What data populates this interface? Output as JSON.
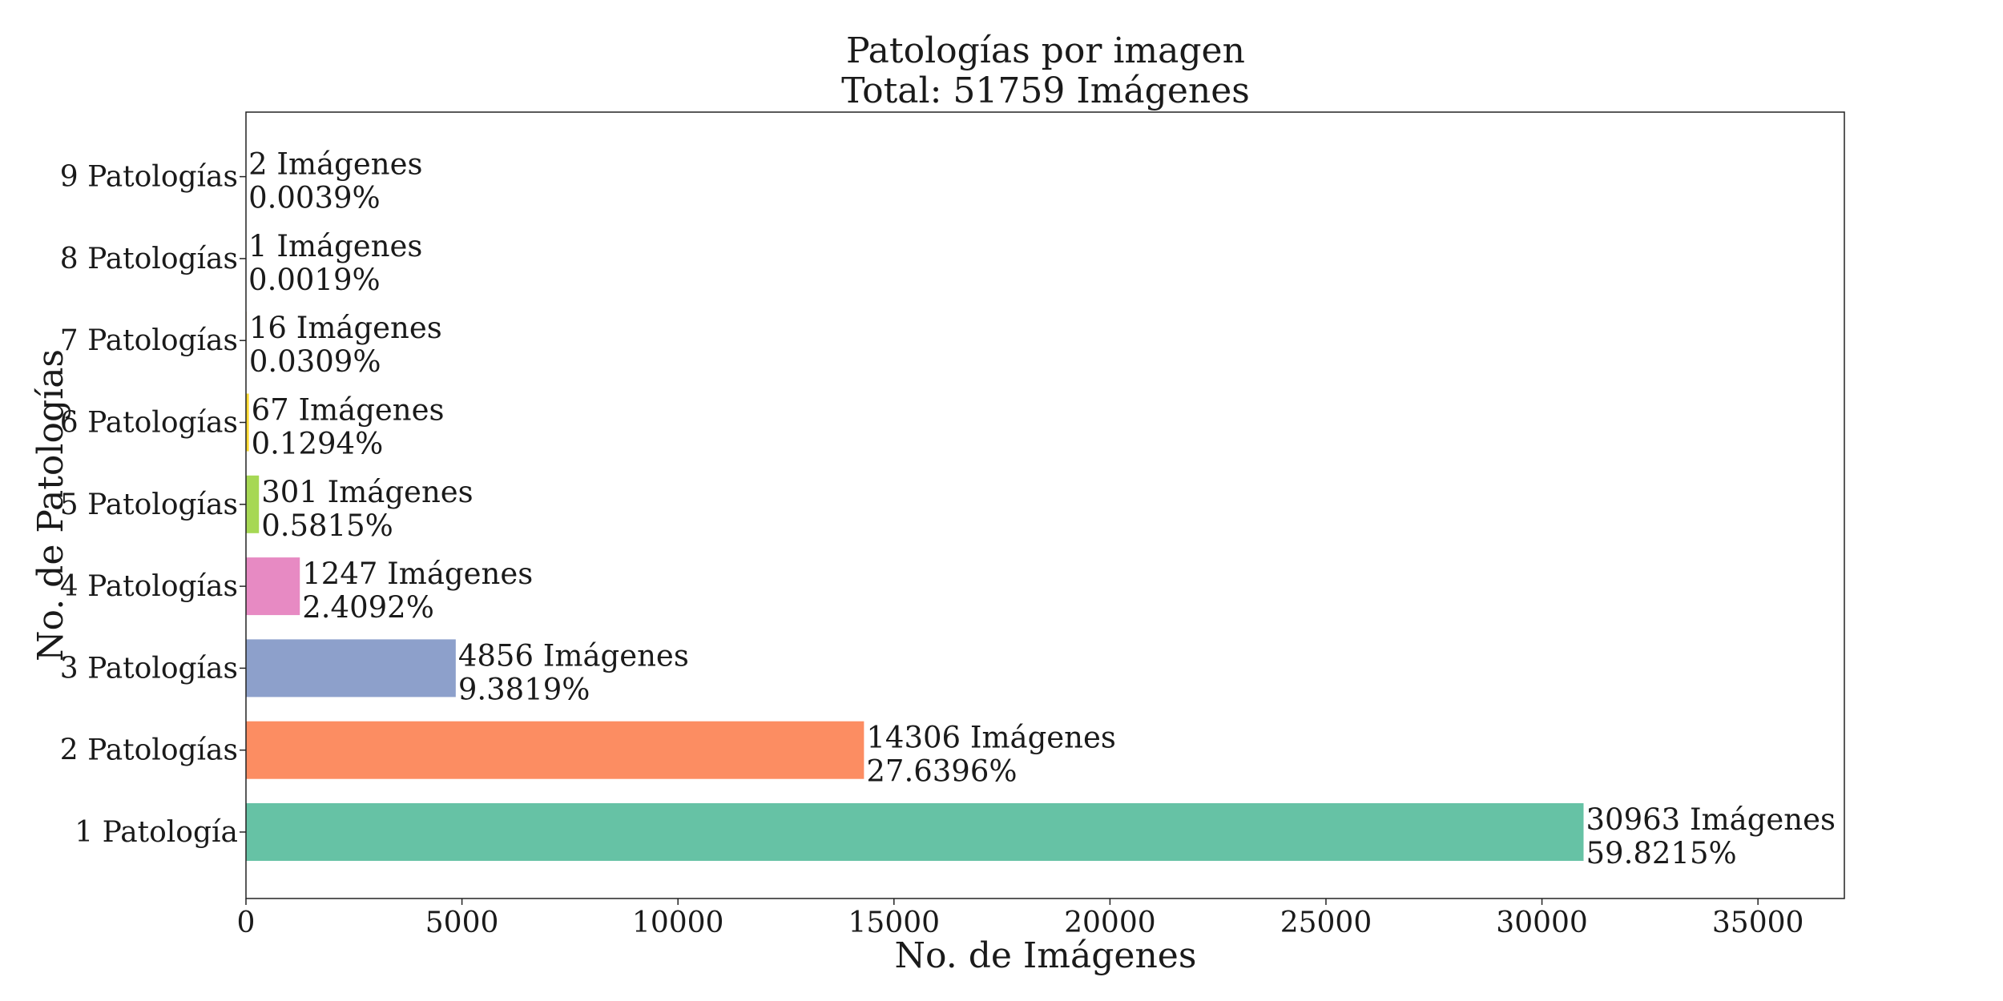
{
  "chart_data": {
    "type": "bar",
    "orientation": "horizontal",
    "title": "Patologías por imagen",
    "subtitle": "Total: 51759 Imágenes",
    "xlabel": "No. de Imágenes",
    "ylabel": "No. de Patologías",
    "xlim": [
      0,
      37000
    ],
    "xticks": [
      0,
      5000,
      10000,
      15000,
      20000,
      25000,
      30000,
      35000
    ],
    "grid": false,
    "categories": [
      "1 Patología",
      "2 Patologías",
      "3 Patologías",
      "4 Patologías",
      "5 Patologías",
      "6 Patologías",
      "7 Patologías",
      "8 Patologías",
      "9 Patologías"
    ],
    "values": [
      30963,
      14306,
      4856,
      1247,
      301,
      67,
      16,
      1,
      2
    ],
    "count_labels": [
      "30963 Imágenes",
      "14306 Imágenes",
      "4856 Imágenes",
      "1247 Imágenes",
      "301 Imágenes",
      "67 Imágenes",
      "16 Imágenes",
      "1 Imágenes",
      "2 Imágenes"
    ],
    "percent_labels": [
      "59.8215%",
      "27.6396%",
      "9.3819%",
      "2.4092%",
      "0.5815%",
      "0.1294%",
      "0.0309%",
      "0.0019%",
      "0.0039%"
    ],
    "colors": [
      "#66c2a5",
      "#fc8d62",
      "#8da0cb",
      "#e78ac3",
      "#a6d854",
      "#ffd92f",
      "#e5c494",
      "#b3b3b3",
      "#66c2a5"
    ]
  }
}
